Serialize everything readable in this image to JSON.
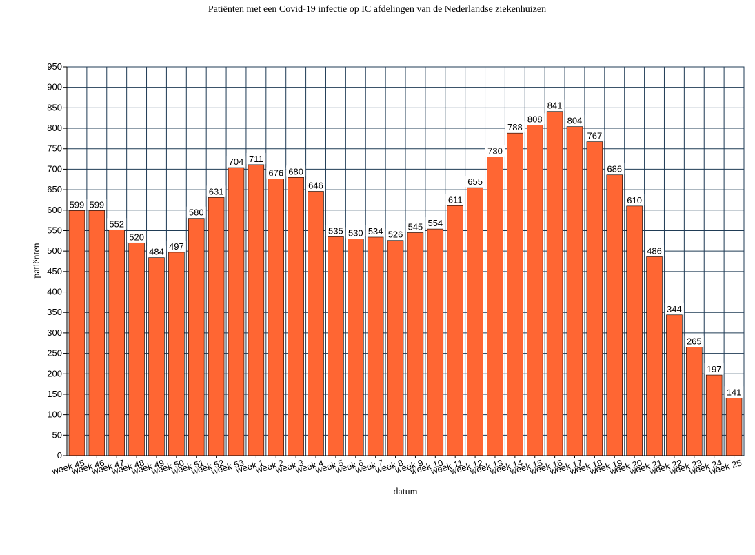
{
  "chart_data": {
    "type": "bar",
    "title": "Patiënten met een Covid-19 infectie op IC afdelingen van de Nederlandse ziekenhuizen",
    "xlabel": "datum",
    "ylabel": "patiënten",
    "ylim": [
      0,
      950
    ],
    "ytick_step": 50,
    "grid": true,
    "categories": [
      "week 45",
      "week 46",
      "week 47",
      "week 48",
      "week 49",
      "week 50",
      "week 51",
      "week 52",
      "week 53",
      "week 1",
      "week 2",
      "week 3",
      "week 4",
      "week 5",
      "week 6",
      "week 7",
      "week 8",
      "week 9",
      "week 10",
      "week 11",
      "week 12",
      "week 13",
      "week 14",
      "week 15",
      "week 16",
      "week 17",
      "week 18",
      "week 19",
      "week 20",
      "week 21",
      "week 22",
      "week 23",
      "week 24",
      "week 25"
    ],
    "values": [
      599,
      599,
      552,
      520,
      484,
      497,
      580,
      631,
      704,
      711,
      676,
      680,
      646,
      535,
      530,
      534,
      526,
      545,
      554,
      611,
      655,
      730,
      788,
      808,
      841,
      804,
      767,
      686,
      610,
      486,
      344,
      265,
      197,
      141
    ],
    "colors": {
      "bar": "#ff6633",
      "bar_edge": "#000000",
      "grid": "#1f3b55"
    }
  }
}
